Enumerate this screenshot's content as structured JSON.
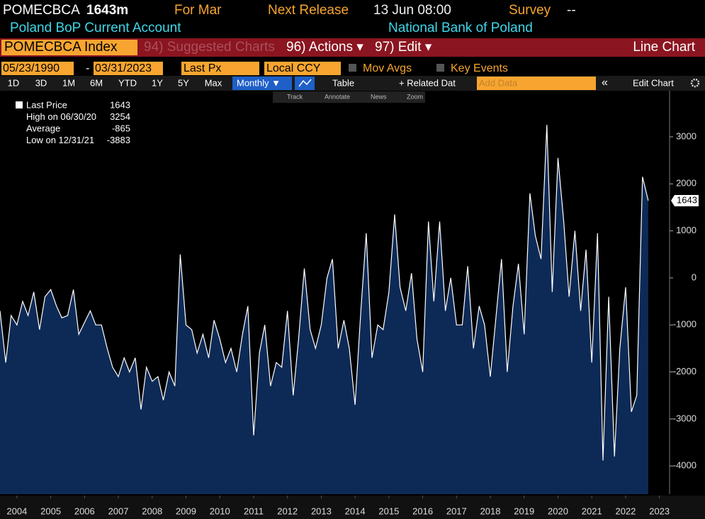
{
  "header": {
    "ticker": "POMECBCA",
    "value": "1643m",
    "period": "For Mar",
    "next_release_label": "Next Release",
    "next_release": "13 Jun 08:00",
    "survey_label": "Survey",
    "survey_value": "--",
    "description": "Poland BoP Current Account",
    "source": "National Bank of Poland"
  },
  "menu": {
    "security": "POMECBCA Index",
    "suggested": "94) Suggested Charts",
    "actions": "96) Actions ▾",
    "edit": "97) Edit ▾",
    "chart_type": "Line Chart"
  },
  "controls": {
    "start_date": "05/23/1990",
    "separator": "-",
    "end_date": "03/31/2023",
    "field": "Last Px",
    "currency": "Local CCY",
    "mov_avgs": "Mov Avgs",
    "key_events": "Key Events"
  },
  "buttons": {
    "ranges": [
      "1D",
      "3D",
      "1M",
      "6M",
      "YTD",
      "1Y",
      "5Y",
      "Max"
    ],
    "frequency": "Monthly ▼",
    "table": "Table",
    "related": "+ Related Dat",
    "add_data": "Add Data",
    "collapse": "«",
    "edit_chart": "Edit Chart"
  },
  "tools": [
    "Track",
    "Annotate",
    "News",
    "Zoom"
  ],
  "legend": {
    "rows": [
      {
        "label": "Last Price",
        "value": "1643"
      },
      {
        "label": "High on 06/30/20",
        "value": "3254"
      },
      {
        "label": "Average",
        "value": "-865"
      },
      {
        "label": "Low on 12/31/21",
        "value": "-3883"
      }
    ]
  },
  "chart_data": {
    "type": "area",
    "last_value_label": "1643",
    "x": [
      2004,
      2004.17,
      2004.33,
      2004.5,
      2004.67,
      2004.83,
      2005,
      2005.17,
      2005.33,
      2005.5,
      2005.67,
      2005.83,
      2006,
      2006.17,
      2006.33,
      2006.5,
      2006.67,
      2006.83,
      2007,
      2007.17,
      2007.33,
      2007.5,
      2007.67,
      2007.83,
      2008,
      2008.17,
      2008.33,
      2008.5,
      2008.67,
      2008.83,
      2009,
      2009.17,
      2009.33,
      2009.5,
      2009.67,
      2009.83,
      2010,
      2010.17,
      2010.33,
      2010.5,
      2010.67,
      2010.83,
      2011,
      2011.17,
      2011.33,
      2011.5,
      2011.67,
      2011.83,
      2012,
      2012.17,
      2012.33,
      2012.5,
      2012.67,
      2012.83,
      2013,
      2013.17,
      2013.33,
      2013.5,
      2013.67,
      2013.83,
      2014,
      2014.17,
      2014.33,
      2014.5,
      2014.67,
      2014.83,
      2015,
      2015.17,
      2015.33,
      2015.5,
      2015.67,
      2015.83,
      2016,
      2016.17,
      2016.33,
      2016.5,
      2016.67,
      2016.83,
      2017,
      2017.17,
      2017.33,
      2017.5,
      2017.67,
      2017.83,
      2018,
      2018.17,
      2018.33,
      2018.5,
      2018.67,
      2018.83,
      2019,
      2019.17,
      2019.33,
      2019.5,
      2019.67,
      2019.83,
      2020,
      2020.17,
      2020.33,
      2020.5,
      2020.67,
      2020.83,
      2021,
      2021.17,
      2021.33,
      2021.5,
      2021.67,
      2021.83,
      2022,
      2022.17,
      2022.33,
      2022.5,
      2022.67,
      2022.83,
      2023,
      2023.17
    ],
    "series": [
      {
        "name": "Last Price",
        "color": "#ffffff",
        "fill": "#0d2a57",
        "values": [
          -700,
          -1800,
          -800,
          -1000,
          -500,
          -800,
          -300,
          -1100,
          -400,
          -250,
          -600,
          -850,
          -800,
          -250,
          -1200,
          -950,
          -700,
          -1000,
          -1000,
          -1500,
          -1900,
          -2100,
          -1700,
          -2000,
          -1700,
          -2800,
          -1900,
          -2200,
          -2100,
          -2600,
          -2000,
          -2300,
          500,
          -1000,
          -1100,
          -1600,
          -1200,
          -1700,
          -900,
          -1300,
          -1800,
          -1500,
          -2000,
          -1200,
          -600,
          -3350,
          -1600,
          -1000,
          -2300,
          -1800,
          -1900,
          -700,
          -2500,
          -1300,
          200,
          -1100,
          -1500,
          -1000,
          0,
          400,
          -1500,
          -900,
          -1500,
          -2700,
          -700,
          950,
          -1700,
          -1000,
          -1100,
          -300,
          1350,
          -200,
          -700,
          100,
          -1300,
          -2000,
          1200,
          -500,
          1200,
          -700,
          0,
          -1000,
          -1000,
          250,
          -1500,
          -600,
          -1000,
          -2100,
          -800,
          400,
          -2000,
          -600,
          300,
          -1200,
          1800,
          900,
          400,
          3254,
          -300,
          2550,
          1200,
          -400,
          1000,
          -700,
          600,
          -1800,
          950,
          -3883,
          -400,
          -3800,
          -1500,
          -200,
          -2850,
          -2500,
          2150,
          1643
        ]
      }
    ],
    "xlim": [
      2004,
      2023.8
    ],
    "xticks": [
      {
        "value": 2004.5,
        "label": "2004"
      },
      {
        "value": 2005.5,
        "label": "2005"
      },
      {
        "value": 2006.5,
        "label": "2006"
      },
      {
        "value": 2007.5,
        "label": "2007"
      },
      {
        "value": 2008.5,
        "label": "2008"
      },
      {
        "value": 2009.5,
        "label": "2009"
      },
      {
        "value": 2010.5,
        "label": "2010"
      },
      {
        "value": 2011.5,
        "label": "2011"
      },
      {
        "value": 2012.5,
        "label": "2012"
      },
      {
        "value": 2013.5,
        "label": "2013"
      },
      {
        "value": 2014.5,
        "label": "2014"
      },
      {
        "value": 2015.5,
        "label": "2015"
      },
      {
        "value": 2016.5,
        "label": "2016"
      },
      {
        "value": 2017.5,
        "label": "2017"
      },
      {
        "value": 2018.5,
        "label": "2018"
      },
      {
        "value": 2019.5,
        "label": "2019"
      },
      {
        "value": 2020.5,
        "label": "2020"
      },
      {
        "value": 2021.5,
        "label": "2021"
      },
      {
        "value": 2022.5,
        "label": "2022"
      },
      {
        "value": 2023.5,
        "label": "2023"
      }
    ],
    "ylim": [
      -4600,
      3980
    ],
    "yticks": [
      -4000,
      -3000,
      -2000,
      -1000,
      0,
      1000,
      2000,
      3000
    ]
  }
}
